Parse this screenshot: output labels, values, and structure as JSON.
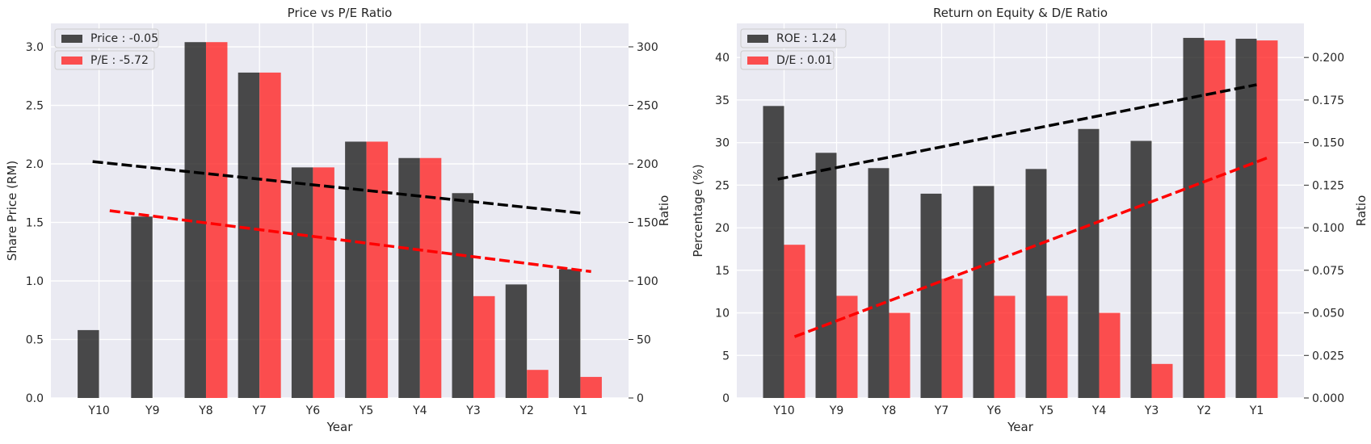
{
  "chart_data": [
    {
      "type": "bar",
      "title": "Price vs P/E Ratio",
      "xlabel": "Year",
      "ylabel_left": "Share Price (RM)",
      "ylabel_right": "Ratio",
      "categories": [
        "Y10",
        "Y9",
        "Y8",
        "Y7",
        "Y6",
        "Y5",
        "Y4",
        "Y3",
        "Y2",
        "Y1"
      ],
      "ylim_left": [
        0,
        3.2
      ],
      "ylim_right": [
        0,
        320
      ],
      "yticks_left": [
        "0.0",
        "0.5",
        "1.0",
        "1.5",
        "2.0",
        "2.5",
        "3.0"
      ],
      "yticks_right": [
        "0",
        "50",
        "100",
        "150",
        "200",
        "250",
        "300"
      ],
      "grid": true,
      "legend_position": "top-left",
      "series": [
        {
          "name": "Price : -0.05",
          "axis": "left",
          "color": "#1a1a1a",
          "values": [
            0.58,
            1.55,
            3.04,
            2.78,
            1.97,
            2.19,
            2.05,
            1.75,
            0.97,
            1.1
          ],
          "trend": [
            2.02,
            1.58
          ]
        },
        {
          "name": "P/E : -5.72",
          "axis": "right",
          "color": "#ff2020",
          "values": [
            0,
            0,
            304,
            278,
            197,
            219,
            205,
            87,
            24,
            18
          ],
          "trend": [
            160,
            108
          ]
        }
      ]
    },
    {
      "type": "bar",
      "title": "Return on Equity & D/E Ratio",
      "xlabel": "Year",
      "ylabel_left": "Percentage (%)",
      "ylabel_right": "Ratio",
      "categories": [
        "Y10",
        "Y9",
        "Y8",
        "Y7",
        "Y6",
        "Y5",
        "Y4",
        "Y3",
        "Y2",
        "Y1"
      ],
      "ylim_left": [
        0,
        44
      ],
      "ylim_right": [
        0,
        0.22
      ],
      "yticks_left": [
        "0",
        "5",
        "10",
        "15",
        "20",
        "25",
        "30",
        "35",
        "40"
      ],
      "yticks_right": [
        "0.000",
        "0.025",
        "0.050",
        "0.075",
        "0.100",
        "0.125",
        "0.150",
        "0.175",
        "0.200"
      ],
      "grid": true,
      "legend_position": "top-left",
      "series": [
        {
          "name": "ROE : 1.24",
          "axis": "left",
          "color": "#1a1a1a",
          "values": [
            34.3,
            28.8,
            27.0,
            24.0,
            24.9,
            26.9,
            31.6,
            30.2,
            42.3,
            42.2
          ],
          "trend": [
            25.7,
            36.8
          ]
        },
        {
          "name": "D/E : 0.01",
          "axis": "right",
          "color": "#ff2020",
          "values": [
            0.09,
            0.06,
            0.05,
            0.07,
            0.06,
            0.06,
            0.05,
            0.02,
            0.21,
            0.21
          ],
          "trend": [
            0.036,
            0.141
          ]
        }
      ]
    }
  ]
}
